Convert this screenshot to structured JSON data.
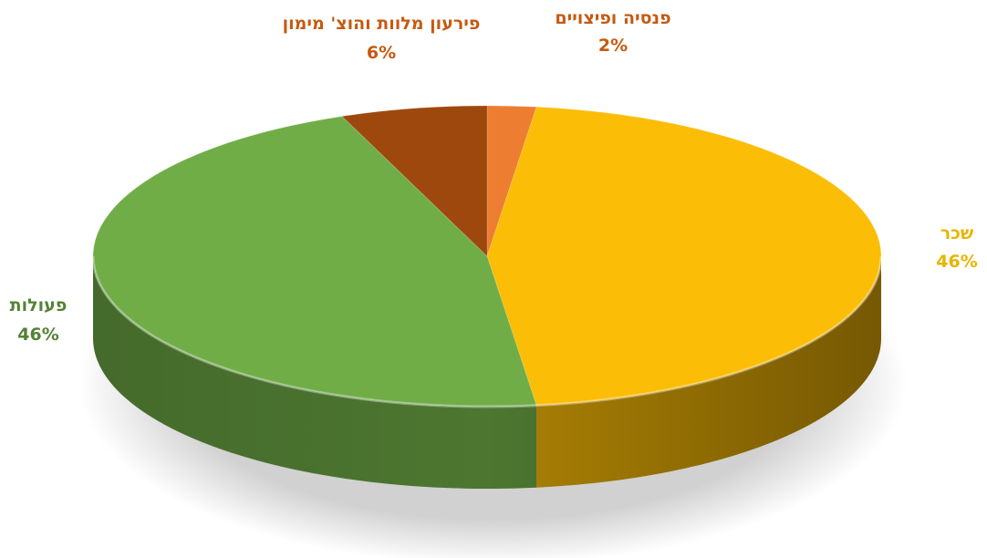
{
  "chart_data": {
    "type": "pie",
    "style": "3d",
    "legend": "none",
    "slices": [
      {
        "label": "פנסיה ופיצויים",
        "value": 2,
        "percent_label": "2%",
        "color": "#ed7d31",
        "label_color": "#c55a11"
      },
      {
        "label": "שכר",
        "value": 46,
        "percent_label": "46%",
        "color": "#fbbd06",
        "label_color": "#e8b400"
      },
      {
        "label": "פעולות",
        "value": 46,
        "percent_label": "46%",
        "color": "#70ad47",
        "label_color": "#548235"
      },
      {
        "label": "פירעון מלוות והוצ' מימון",
        "value": 6,
        "percent_label": "6%",
        "color": "#9e480e",
        "label_color": "#c55a11"
      }
    ]
  }
}
